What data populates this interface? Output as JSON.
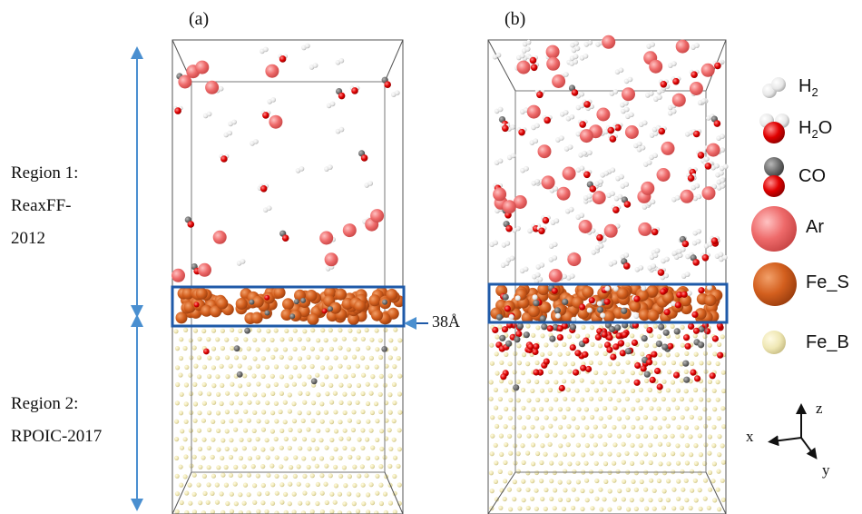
{
  "panels": {
    "a_label": "(a)",
    "b_label": "(b)"
  },
  "regions": {
    "region1_line1": "Region 1:",
    "region1_line2": "ReaxFF-",
    "region1_line3": "2012",
    "region2_line1": "Region 2:",
    "region2_line2": "RPOIC-2017"
  },
  "dimension": {
    "label": "38Å"
  },
  "legend": [
    {
      "name": "H",
      "sub": "2",
      "rest": "",
      "icon": "h2-molecule-icon"
    },
    {
      "name": "H",
      "sub": "2",
      "rest": "O",
      "icon": "h2o-molecule-icon"
    },
    {
      "name": "CO",
      "sub": "",
      "rest": "",
      "icon": "co-molecule-icon"
    },
    {
      "name": "Ar",
      "sub": "",
      "rest": "",
      "icon": "ar-atom-icon"
    },
    {
      "name": "Fe_S",
      "sub": "",
      "rest": "",
      "icon": "fe-surface-atom-icon"
    },
    {
      "name": "Fe_B",
      "sub": "",
      "rest": "",
      "icon": "fe-bulk-atom-icon"
    }
  ],
  "axes": {
    "x": "x",
    "y": "y",
    "z": "z"
  },
  "colors": {
    "ar": "#ee6a6a",
    "oxygen": "#e00000",
    "carbon": "#6b6b6b",
    "hydrogen": "#e6e6e6",
    "fe_s": "#d35f1e",
    "fe_b": "#efe7b4",
    "box_highlight": "#1f5aa8",
    "arrow_blue": "#4a8fd0"
  }
}
